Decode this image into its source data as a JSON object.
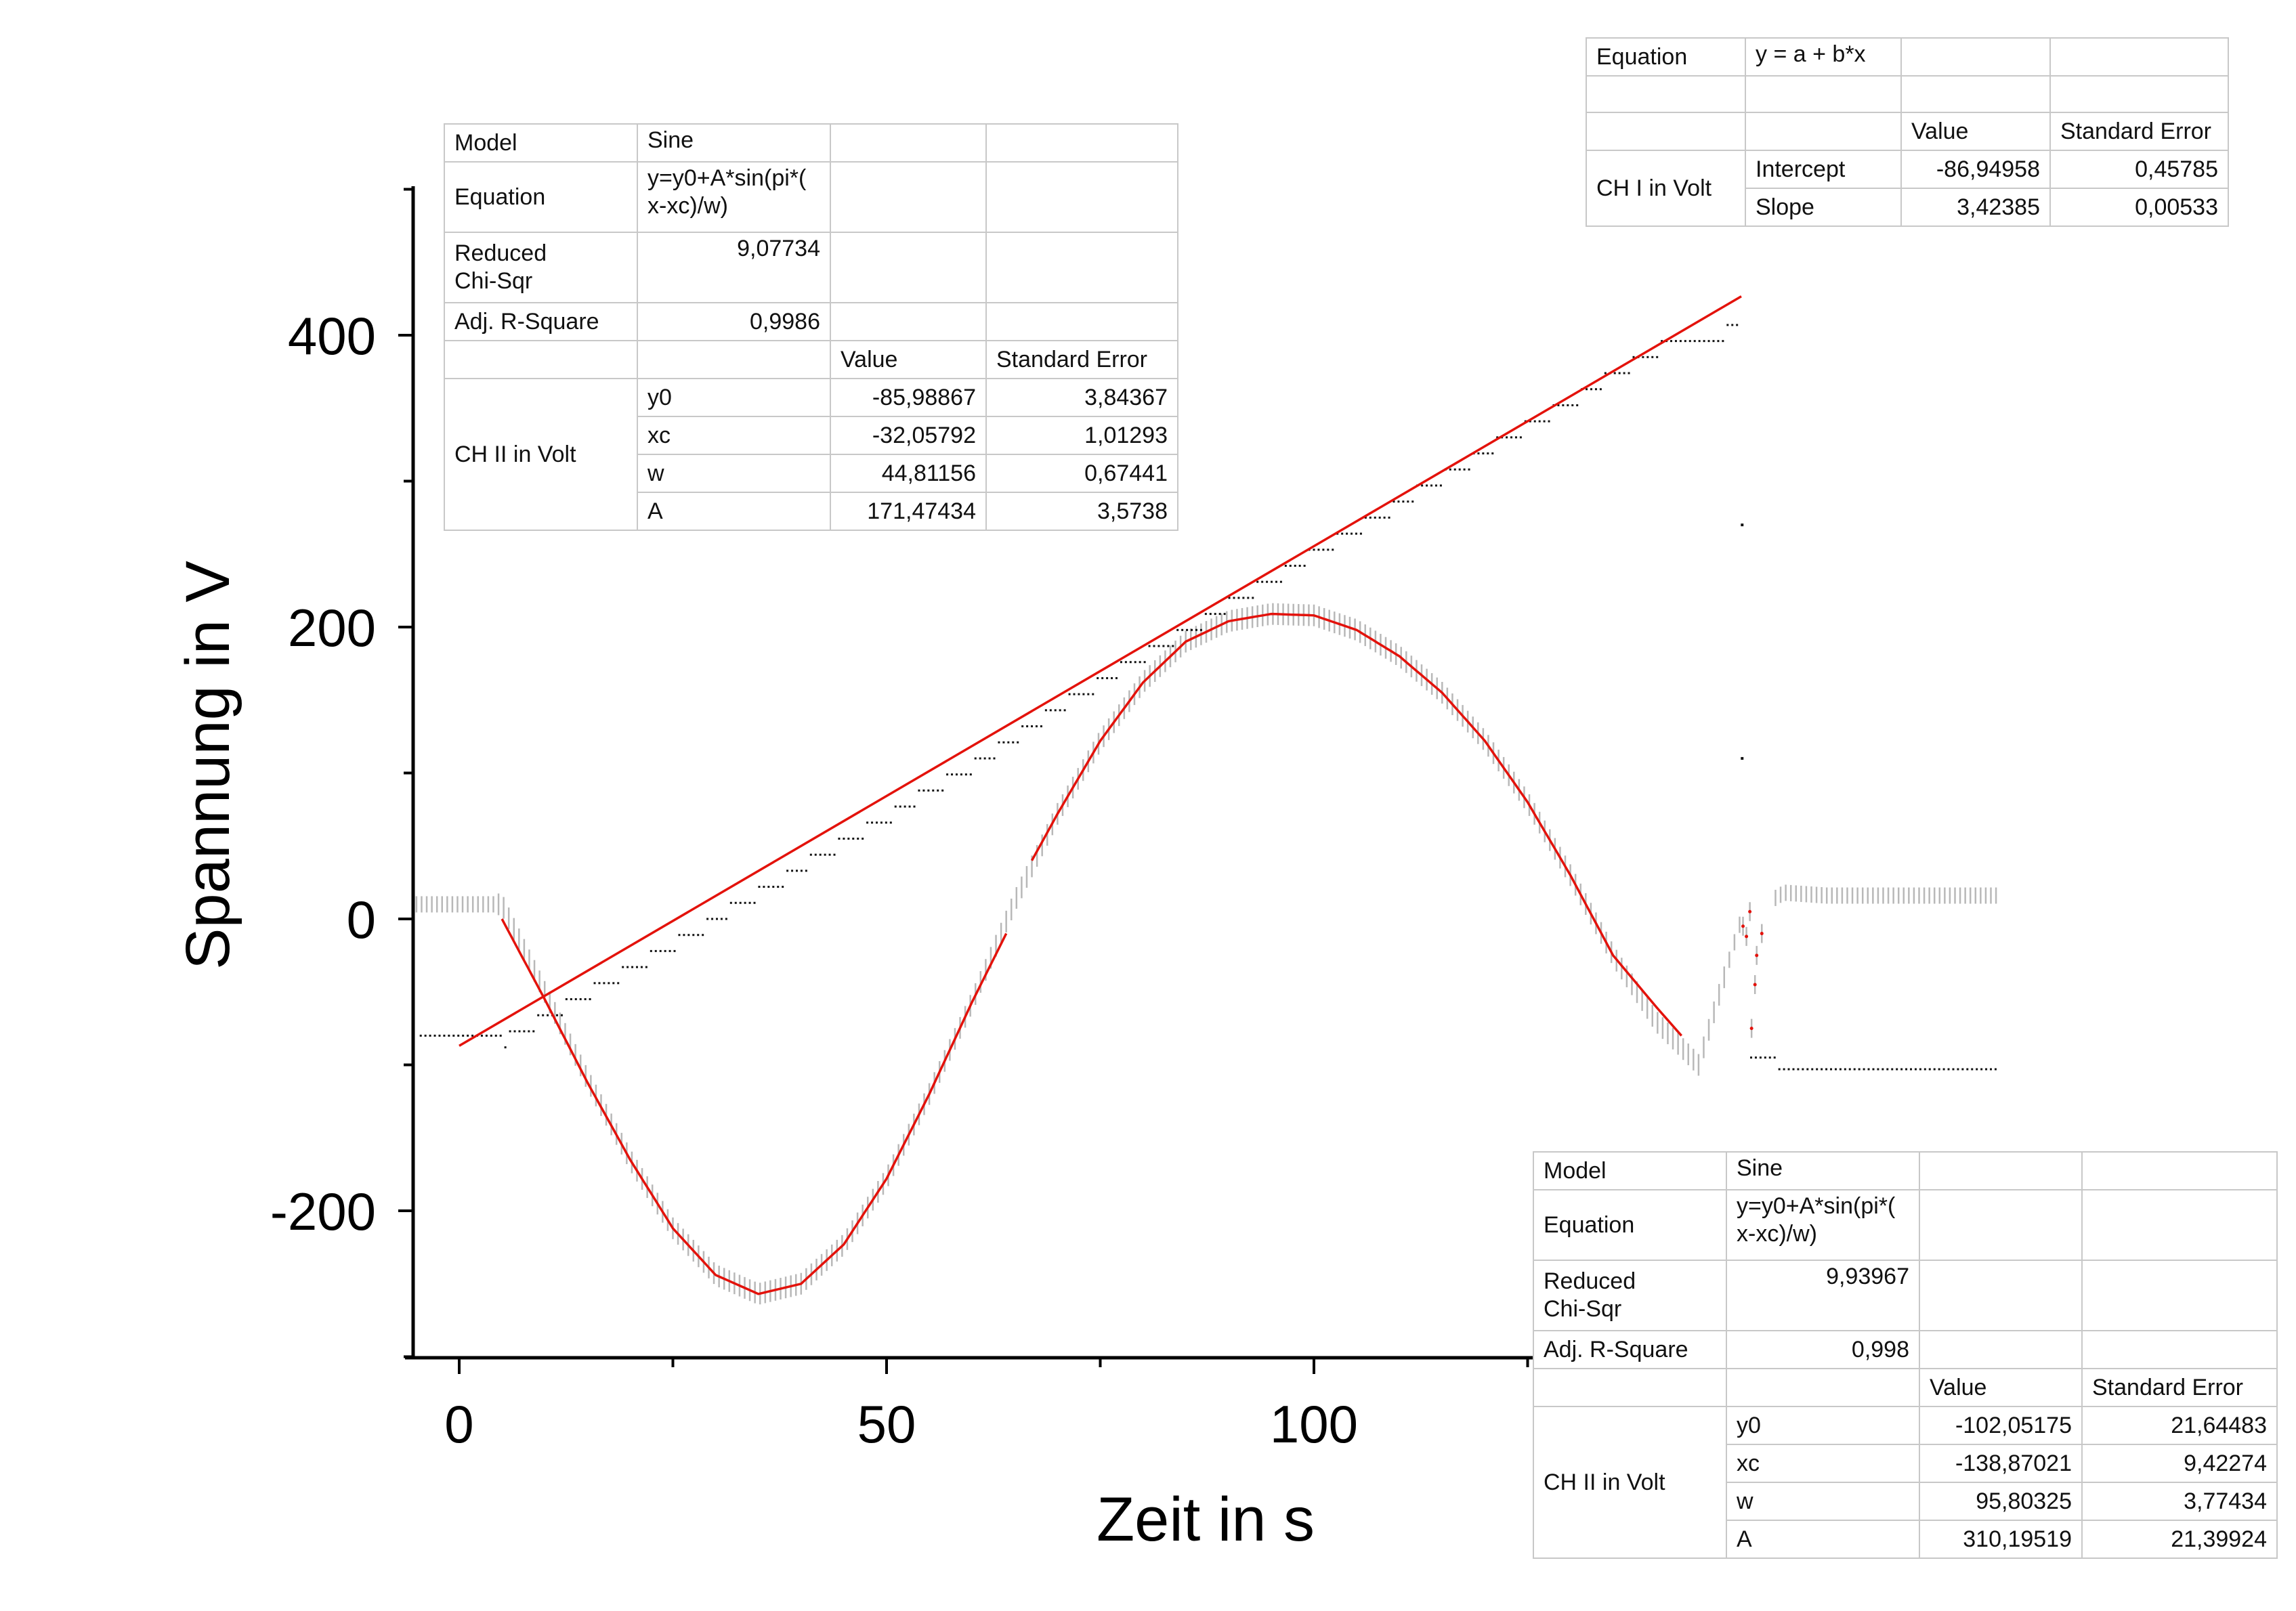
{
  "chart_data": {
    "type": "scatter",
    "xlabel": "Zeit in s",
    "ylabel": "Spannung in V",
    "xlim": [
      -5,
      180
    ],
    "ylim": [
      -300,
      500
    ],
    "x_ticks": [
      0,
      50,
      100
    ],
    "y_ticks": [
      -200,
      0,
      200,
      400
    ],
    "grid": false,
    "colors": {
      "data": "#b8b8b8",
      "staircase": "#111111",
      "fit": "#e3120b"
    },
    "series": [
      {
        "kind": "measured",
        "x": [
          -5,
          0,
          5,
          10,
          15,
          20,
          25,
          30,
          35,
          40,
          45,
          50,
          55,
          60,
          65,
          70,
          75,
          80,
          85,
          90,
          95,
          100,
          105,
          110,
          115,
          120,
          125,
          130,
          135,
          140,
          145,
          150,
          155,
          160,
          165,
          180
        ],
        "y": [
          10,
          10,
          10,
          -50,
          -110,
          -165,
          -212,
          -244,
          -257,
          -250,
          -223,
          -178,
          -120,
          -57,
          12,
          72,
          122,
          162,
          190,
          204,
          209,
          208,
          198,
          180,
          155,
          122,
          80,
          30,
          -25,
          -70,
          -100,
          0,
          18,
          16,
          16,
          16
        ]
      },
      {
        "kind": "ch1-staircase",
        "x": [
          -5,
          5,
          10,
          20,
          30,
          40,
          50,
          60,
          70,
          80,
          90,
          100,
          110,
          120,
          130,
          140,
          150,
          150,
          155,
          180
        ],
        "y": [
          -80,
          -80,
          -62,
          -30,
          5,
          40,
          75,
          110,
          150,
          185,
          220,
          255,
          290,
          325,
          360,
          395,
          410,
          -95,
          -103,
          -103
        ]
      }
    ],
    "fits": [
      {
        "model": "Line",
        "x": [
          0,
          150
        ],
        "y": [
          -86.94958,
          426.62792
        ]
      },
      {
        "model": "Sine",
        "x_range": [
          5,
          64
        ],
        "y0": -85.98867,
        "xc": -32.05792,
        "w": 44.81156,
        "A": 171.47434
      },
      {
        "model": "Sine",
        "x_range": [
          67,
          143
        ],
        "y0": -102.05175,
        "xc": -138.87021,
        "w": 95.80325,
        "A": 310.19519
      }
    ]
  },
  "table_left": {
    "model_label": "Model",
    "model_value": "Sine",
    "equation_label": "Equation",
    "equation_value": "y=y0+A*sin(pi*(\nx-xc)/w)",
    "chisq_label": "Reduced\nChi-Sqr",
    "chisq_value": "9,07734",
    "r2_label": "Adj. R-Square",
    "r2_value": "0,9986",
    "col_value": "Value",
    "col_error": "Standard Error",
    "group": "CH II in Volt",
    "rows": [
      {
        "param": "y0",
        "value": "-85,98867",
        "error": "3,84367"
      },
      {
        "param": "xc",
        "value": "-32,05792",
        "error": "1,01293"
      },
      {
        "param": "w",
        "value": "44,81156",
        "error": "0,67441"
      },
      {
        "param": "A",
        "value": "171,47434",
        "error": "3,5738"
      }
    ]
  },
  "table_top": {
    "equation_label": "Equation",
    "equation_value": "y = a + b*x",
    "col_value": "Value",
    "col_error": "Standard Error",
    "group": "CH I in Volt",
    "rows": [
      {
        "param": "Intercept",
        "value": "-86,94958",
        "error": "0,45785"
      },
      {
        "param": "Slope",
        "value": "3,42385",
        "error": "0,00533"
      }
    ]
  },
  "table_bottom": {
    "model_label": "Model",
    "model_value": "Sine",
    "equation_label": "Equation",
    "equation_value": "y=y0+A*sin(pi*(\nx-xc)/w)",
    "chisq_label": "Reduced\nChi-Sqr",
    "chisq_value": "9,93967",
    "r2_label": "Adj. R-Square",
    "r2_value": "0,998",
    "col_value": "Value",
    "col_error": "Standard Error",
    "group": "CH II in Volt",
    "rows": [
      {
        "param": "y0",
        "value": "-102,05175",
        "error": "21,64483"
      },
      {
        "param": "xc",
        "value": "-138,87021",
        "error": "9,42274"
      },
      {
        "param": "w",
        "value": "95,80325",
        "error": "3,77434"
      },
      {
        "param": "A",
        "value": "310,19519",
        "error": "21,39924"
      }
    ]
  }
}
